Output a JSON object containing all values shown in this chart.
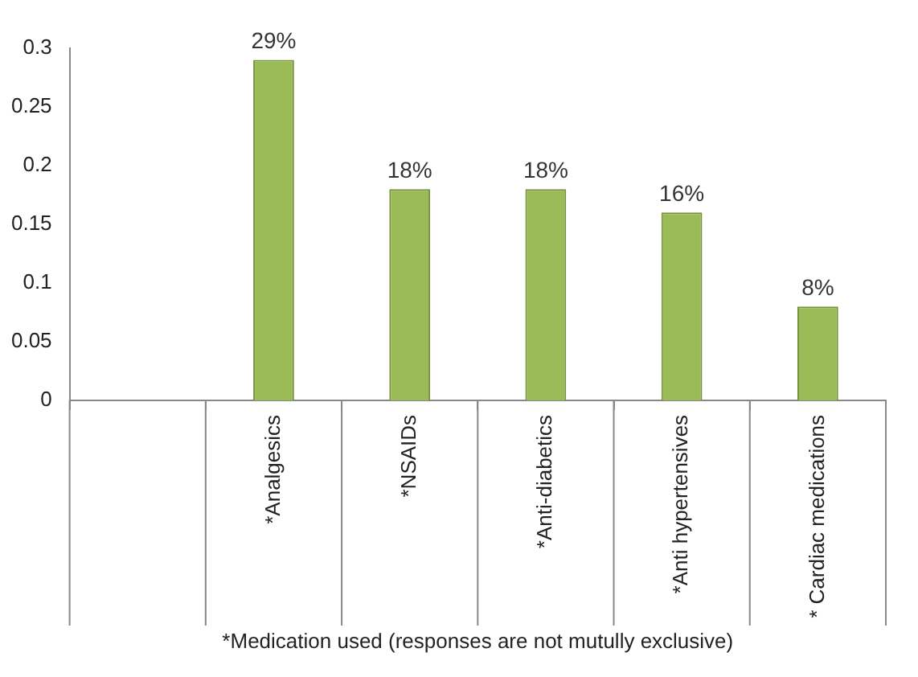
{
  "chart_data": {
    "type": "bar",
    "categories": [
      null,
      "*Analgesics",
      "*NSAIDs",
      "*Anti-diabetics",
      "*Anti hypertensives",
      "* Cardiac medications"
    ],
    "values": [
      null,
      0.29,
      0.18,
      0.18,
      0.16,
      0.08
    ],
    "value_labels": [
      null,
      "29%",
      "18%",
      "18%",
      "16%",
      "8%"
    ],
    "color": "#9bbb59",
    "xlabel": "*Medication used (responses are not mutully exclusive)",
    "ylim": [
      0,
      0.3
    ],
    "yticks": [
      0,
      0.05,
      0.1,
      0.15,
      0.2,
      0.25,
      0.3
    ],
    "grid": false,
    "legend": false
  }
}
